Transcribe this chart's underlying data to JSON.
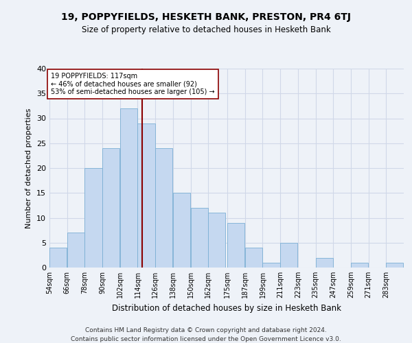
{
  "title": "19, POPPYFIELDS, HESKETH BANK, PRESTON, PR4 6TJ",
  "subtitle": "Size of property relative to detached houses in Hesketh Bank",
  "xlabel": "Distribution of detached houses by size in Hesketh Bank",
  "ylabel": "Number of detached properties",
  "footer1": "Contains HM Land Registry data © Crown copyright and database right 2024.",
  "footer2": "Contains public sector information licensed under the Open Government Licence v3.0.",
  "annotation_title": "19 POPPYFIELDS: 117sqm",
  "annotation_line1": "← 46% of detached houses are smaller (92)",
  "annotation_line2": "53% of semi-detached houses are larger (105) →",
  "property_size": 117,
  "bin_edges": [
    54,
    66,
    78,
    90,
    102,
    114,
    126,
    138,
    150,
    162,
    175,
    187,
    199,
    211,
    223,
    235,
    247,
    259,
    271,
    283,
    295
  ],
  "bar_values": [
    4,
    7,
    20,
    24,
    32,
    29,
    24,
    15,
    12,
    11,
    9,
    4,
    1,
    5,
    0,
    2,
    0,
    1,
    0,
    1
  ],
  "bar_color": "#c5d8f0",
  "bar_edge_color": "#7aafd4",
  "vline_color": "#8b0000",
  "vline_x": 117,
  "annotation_box_color": "#ffffff",
  "annotation_box_edge": "#8b0000",
  "grid_color": "#d0d8e8",
  "background_color": "#eef2f8",
  "ylim": [
    0,
    40
  ],
  "yticks": [
    0,
    5,
    10,
    15,
    20,
    25,
    30,
    35,
    40
  ]
}
